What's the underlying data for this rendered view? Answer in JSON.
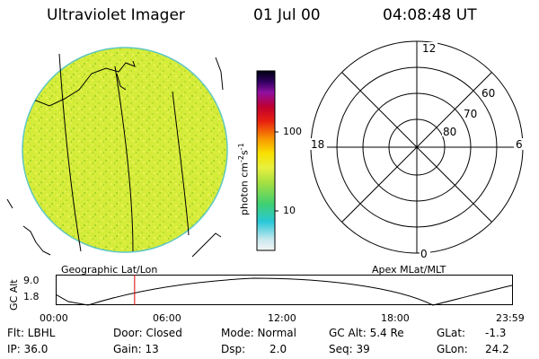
{
  "header": {
    "instrument": "Ultraviolet Imager",
    "date": "01 Jul 00",
    "time": "04:08:48 UT"
  },
  "colorbar": {
    "label": "photon cm",
    "exp1": "-2",
    "s": "s",
    "exp2": "-1",
    "ticks": [
      "100",
      "10"
    ],
    "scale": "log"
  },
  "left_panel": {
    "caption": "Geographic Lat/Lon"
  },
  "polar_plot": {
    "caption": "Apex MLat/MLT",
    "mlt_labels": {
      "top": "12",
      "left": "18",
      "right": "6",
      "bottom": "0"
    },
    "lat_labels": [
      "60",
      "70",
      "80"
    ]
  },
  "altitude_plot": {
    "ylabel": "GC Alt",
    "yticks": [
      "9.0",
      "1.8"
    ],
    "xticks": [
      "00:00",
      "06:00",
      "12:00",
      "18:00",
      "23:59"
    ],
    "marker_hour": 4.15,
    "marker_color": "#dd0000"
  },
  "params": {
    "flt": "Flt: LBHL",
    "ip": "IP: 36.0",
    "door": "Door: Closed",
    "gain": "Gain: 13",
    "mode": "Mode: Normal",
    "dsp_label": "Dsp:",
    "dsp_value": "2.0",
    "gcalt": "GC Alt: 5.4 Re",
    "seq": "Seq: 39",
    "glat_label": "GLat:",
    "glat_value": "-1.3",
    "glon_label": "GLon:",
    "glon_value": "24.2"
  }
}
